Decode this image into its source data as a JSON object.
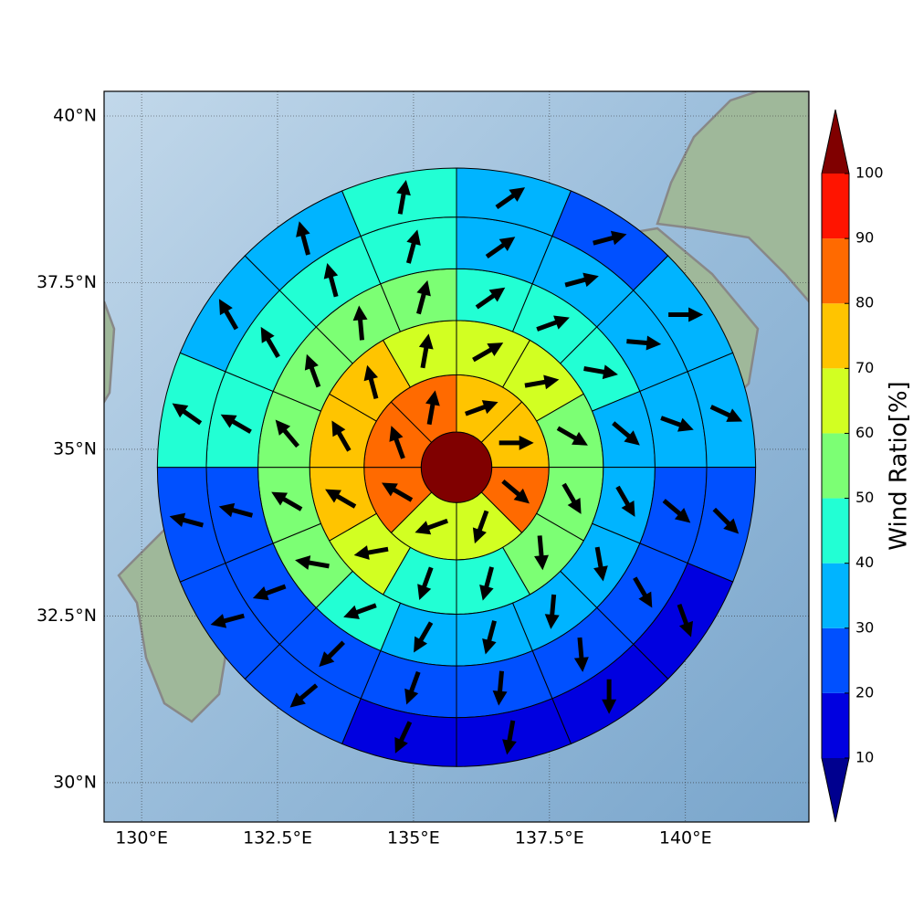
{
  "chart_data": {
    "type": "polar_sector_map",
    "xlim": [
      129.31,
      142.27
    ],
    "ylim": [
      29.41,
      40.37
    ],
    "xticks": [
      {
        "value": 130,
        "label": "130°E"
      },
      {
        "value": 132.5,
        "label": "132.5°E"
      },
      {
        "value": 135,
        "label": "135°E"
      },
      {
        "value": 137.5,
        "label": "137.5°E"
      },
      {
        "value": 140,
        "label": "140°E"
      }
    ],
    "yticks": [
      {
        "value": 30,
        "label": "30°N"
      },
      {
        "value": 32.5,
        "label": "32.5°N"
      },
      {
        "value": 35,
        "label": "35°N"
      },
      {
        "value": 37.5,
        "label": "37.5°N"
      },
      {
        "value": 40,
        "label": "40°N"
      }
    ],
    "grid": true,
    "center": [
      135.79,
      34.73
    ],
    "ring_edges": [
      0,
      0.65,
      1.7,
      2.7,
      3.65,
      4.6,
      5.5
    ],
    "center_value": 105,
    "rings": [
      {
        "values": [
          75,
          75,
          85,
          65,
          65,
          85,
          85,
          85
        ],
        "directions": [
          70,
          90,
          130,
          200,
          250,
          300,
          340,
          10
        ]
      },
      {
        "values": [
          65,
          65,
          55,
          55,
          55,
          45,
          45,
          65,
          75,
          75,
          75,
          65
        ],
        "directions": [
          60,
          80,
          120,
          150,
          175,
          195,
          200,
          260,
          300,
          330,
          345,
          10
        ]
      },
      {
        "values": [
          45,
          45,
          45,
          35,
          35,
          35,
          35,
          35,
          35,
          45,
          55,
          55,
          55,
          55,
          55,
          55
        ],
        "directions": [
          55,
          70,
          100,
          130,
          150,
          170,
          185,
          195,
          210,
          250,
          280,
          300,
          320,
          340,
          355,
          15
        ]
      },
      {
        "values": [
          35,
          35,
          35,
          35,
          25,
          25,
          25,
          25,
          25,
          25,
          25,
          25,
          45,
          45,
          45,
          45
        ],
        "directions": [
          55,
          75,
          95,
          110,
          130,
          150,
          175,
          185,
          200,
          225,
          250,
          285,
          300,
          330,
          345,
          15
        ]
      },
      {
        "values": [
          35,
          25,
          35,
          35,
          25,
          15,
          15,
          15,
          15,
          25,
          25,
          25,
          45,
          35,
          35,
          45
        ],
        "directions": [
          55,
          75,
          90,
          115,
          135,
          160,
          180,
          190,
          205,
          230,
          255,
          285,
          305,
          330,
          345,
          10
        ]
      }
    ],
    "colorbar": {
      "label": "Wind Ratio[%]",
      "lim": [
        10,
        100
      ],
      "ticks": [
        10,
        20,
        30,
        40,
        50,
        60,
        70,
        80,
        90,
        100
      ],
      "colors": [
        "#0000e0",
        "#0050ff",
        "#00b4ff",
        "#22ffd4",
        "#7cff74",
        "#d2ff22",
        "#ffc400",
        "#ff6a00",
        "#ff1400"
      ],
      "under_color": "#00008f",
      "over_color": "#800000"
    }
  }
}
